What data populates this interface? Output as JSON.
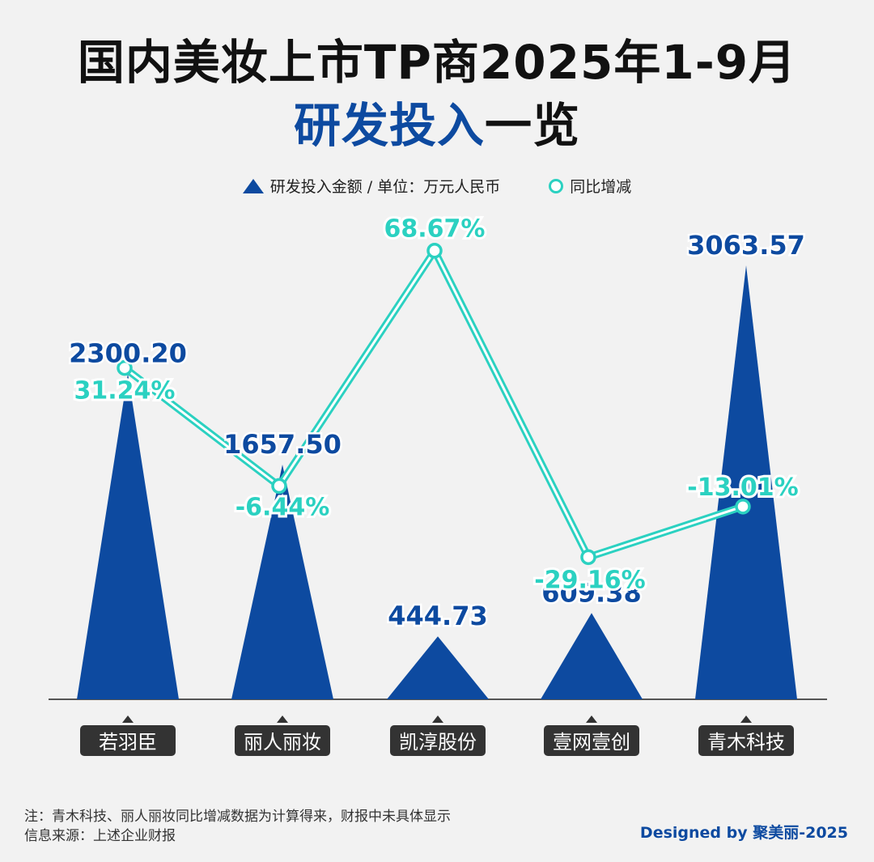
{
  "title_line1": "国内美妆上市TP商2025年1-9月",
  "title_line2_accent": "研发投入",
  "title_line2_rest": "一览",
  "legend": {
    "amount": "研发投入金额 / 单位：万元人民币",
    "yoy": "同比增减"
  },
  "colors": {
    "triangle": "#0d4aa0",
    "line": "#2bd1c1",
    "label_bg": "#333333"
  },
  "chart_data": {
    "type": "bar",
    "categories": [
      "若羽臣",
      "丽人丽妆",
      "凯淳股份",
      "壹网壹创",
      "青木科技"
    ],
    "series": [
      {
        "name": "研发投入金额 / 单位：万元人民币",
        "values": [
          2300.2,
          1657.5,
          444.73,
          609.38,
          3063.57
        ],
        "labels": [
          "2300.20",
          "1657.50",
          "444.73",
          "609.38",
          "3063.57"
        ]
      },
      {
        "name": "同比增减",
        "values": [
          31.24,
          -6.44,
          68.67,
          -29.16,
          -13.01
        ],
        "labels": [
          "31.24%",
          "-6.44%",
          "68.67%",
          "-29.16%",
          "-13.01%"
        ]
      }
    ]
  },
  "footnote1": "注：青木科技、丽人丽妆同比增减数据为计算得来，财报中未具体显示",
  "footnote2": "信息来源：上述企业财报",
  "credit": "Designed by 聚美丽-2025"
}
